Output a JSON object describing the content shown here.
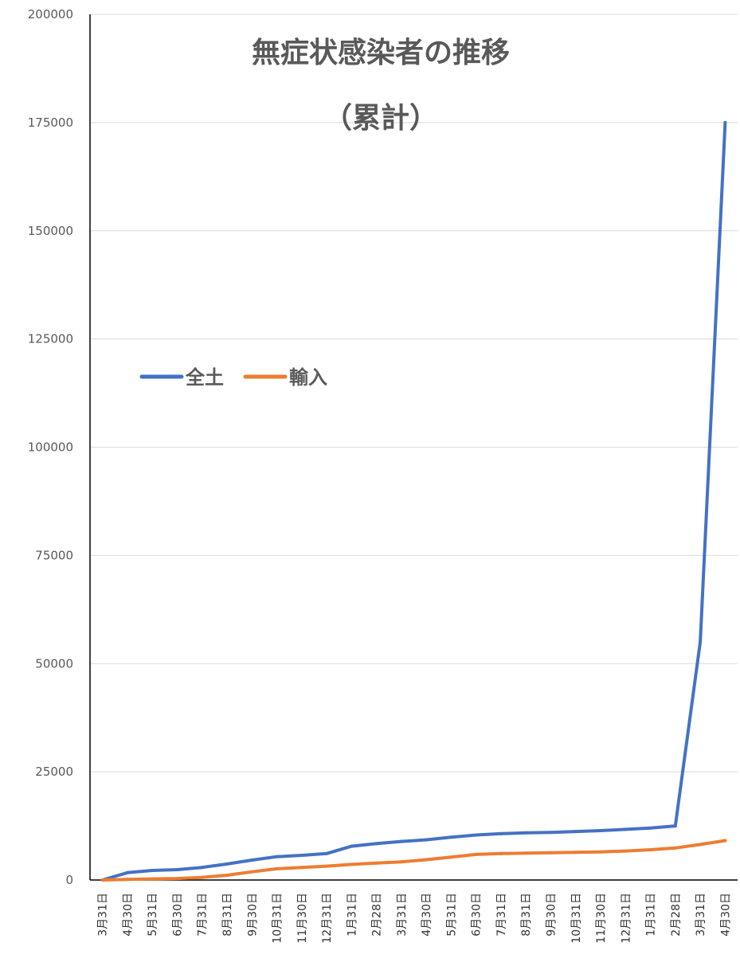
{
  "chart_data": {
    "type": "line",
    "title": "無症状感染者の推移",
    "subtitle": "（累計）",
    "xlabel": "",
    "ylabel": "",
    "ylim": [
      0,
      200000
    ],
    "yticks": [
      0,
      25000,
      50000,
      75000,
      100000,
      125000,
      150000,
      175000,
      200000
    ],
    "grid": true,
    "legend_position": "middle-left",
    "categories": [
      "3月31日",
      "4月30日",
      "5月31日",
      "6月30日",
      "7月31日",
      "8月31日",
      "9月30日",
      "10月31日",
      "11月30日",
      "12月31日",
      "1月31日",
      "2月28日",
      "3月31日",
      "4月30日",
      "5月31日",
      "6月30日",
      "7月31日",
      "8月31日",
      "9月30日",
      "10月31日",
      "11月30日",
      "12月31日",
      "1月31日",
      "2月28日",
      "3月31日",
      "4月30日"
    ],
    "series": [
      {
        "name": "全土",
        "color": "#4472c4",
        "values": [
          0,
          1700,
          2200,
          2400,
          2900,
          3700,
          4600,
          5400,
          5700,
          6100,
          7800,
          8400,
          8900,
          9300,
          9900,
          10400,
          10700,
          10900,
          11000,
          11200,
          11400,
          11700,
          12000,
          12500,
          55000,
          175000
        ]
      },
      {
        "name": "輸入",
        "color": "#ed7d31",
        "values": [
          0,
          150,
          250,
          350,
          600,
          1100,
          1900,
          2600,
          2900,
          3200,
          3600,
          3900,
          4200,
          4700,
          5300,
          5900,
          6100,
          6200,
          6300,
          6400,
          6500,
          6700,
          7000,
          7400,
          8200,
          9100
        ]
      }
    ]
  }
}
